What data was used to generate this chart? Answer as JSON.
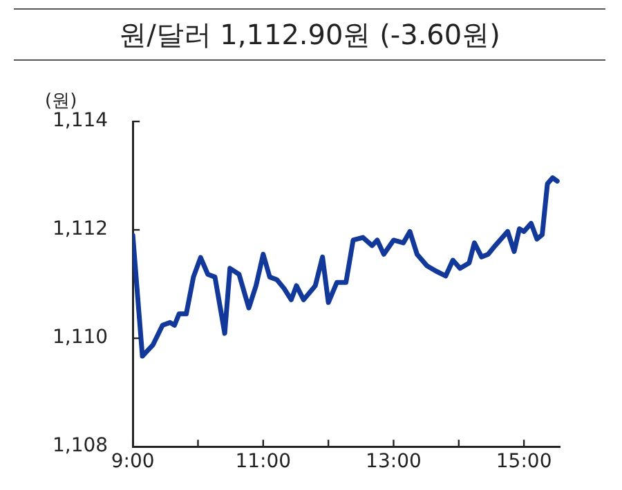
{
  "chart_data": {
    "type": "line",
    "title": "원/달러 1,112.90원 (-3.60원)",
    "ylabel": "(원)",
    "x": [
      9,
      9.147,
      9.31,
      9.456,
      9.57,
      9.64,
      9.71,
      9.82,
      9.93,
      10.04,
      10.15,
      10.26,
      10.41,
      10.49,
      10.63,
      10.78,
      10.89,
      11.0,
      11.1,
      11.21,
      11.32,
      11.43,
      11.51,
      11.62,
      11.8,
      11.91,
      12.0,
      12.13,
      12.27,
      12.38,
      12.53,
      12.67,
      12.75,
      12.85,
      13.0,
      13.15,
      13.25,
      13.36,
      13.51,
      13.65,
      13.8,
      13.91,
      14.02,
      14.16,
      14.24,
      14.35,
      14.45,
      14.56,
      14.75,
      14.85,
      14.93,
      15.0,
      15.11,
      15.2,
      15.28,
      15.36,
      15.44,
      15.51
    ],
    "series": [
      {
        "color": "#12399a",
        "values": [
          1111.9,
          1109.67,
          1109.88,
          1110.24,
          1110.29,
          1110.24,
          1110.45,
          1110.45,
          1111.13,
          1111.49,
          1111.18,
          1111.13,
          1110.09,
          1111.29,
          1111.18,
          1110.56,
          1110.97,
          1111.55,
          1111.13,
          1111.08,
          1110.92,
          1110.71,
          1110.97,
          1110.71,
          1110.97,
          1111.5,
          1110.66,
          1111.03,
          1111.03,
          1111.81,
          1111.86,
          1111.71,
          1111.81,
          1111.55,
          1111.81,
          1111.76,
          1111.97,
          1111.55,
          1111.34,
          1111.24,
          1111.15,
          1111.44,
          1111.29,
          1111.39,
          1111.76,
          1111.5,
          1111.55,
          1111.71,
          1111.97,
          1111.6,
          1112.02,
          1111.97,
          1112.12,
          1111.83,
          1111.91,
          1112.85,
          1112.96,
          1112.9
        ]
      }
    ],
    "xlim": [
      9,
      15.55
    ],
    "xticks": [
      {
        "value": 9,
        "label": "9:00"
      },
      {
        "value": 10,
        "label": null
      },
      {
        "value": 11,
        "label": "11:00"
      },
      {
        "value": 12,
        "label": null
      },
      {
        "value": 13,
        "label": "13:00"
      },
      {
        "value": 14,
        "label": null
      },
      {
        "value": 15,
        "label": "15:00"
      }
    ],
    "ylim": [
      1108,
      1114
    ],
    "yticks": [
      {
        "value": 1108,
        "label": "1,108"
      },
      {
        "value": 1110,
        "label": "1,110"
      },
      {
        "value": 1112,
        "label": "1,112"
      },
      {
        "value": 1114,
        "label": "1,114"
      }
    ],
    "grid": false,
    "legend": false,
    "marker": "none",
    "line_style": "solid"
  }
}
